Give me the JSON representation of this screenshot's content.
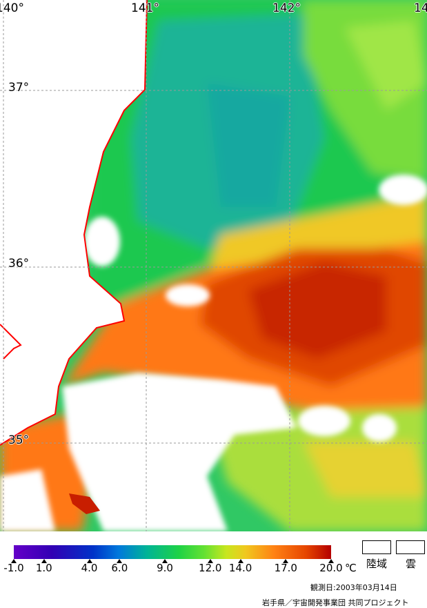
{
  "map": {
    "lon_labels": [
      "140°",
      "141°",
      "142°",
      "14"
    ],
    "lat_labels": [
      "37°",
      "36°",
      "35°"
    ],
    "colors": {
      "land": "#ffffff",
      "coast": "#ff0000",
      "grid": "#9a9a9a",
      "cold": "#14b4a0",
      "cool": "#1ec850",
      "mid": "#8ce646",
      "warm": "#ff8c14",
      "hot": "#dc3c00",
      "hottest": "#c81e00"
    }
  },
  "colorbar": {
    "unit": "℃",
    "ticks": [
      {
        "label": "-1.0",
        "value": -1.0
      },
      {
        "label": "1.0",
        "value": 1.0
      },
      {
        "label": "4.0",
        "value": 4.0
      },
      {
        "label": "6.0",
        "value": 6.0
      },
      {
        "label": "9.0",
        "value": 9.0
      },
      {
        "label": "12.0",
        "value": 12.0
      },
      {
        "label": "14.0",
        "value": 14.0
      },
      {
        "label": "17.0",
        "value": 17.0
      },
      {
        "label": "20.0",
        "value": 20.0
      }
    ],
    "range": [
      -1.0,
      20.0
    ]
  },
  "legend": {
    "land_label": "陸域",
    "cloud_label": "雲"
  },
  "footer": {
    "observation_date": "観測日:2003年03月14日",
    "credit": "岩手県／宇宙開発事業団 共同プロジェクト"
  }
}
